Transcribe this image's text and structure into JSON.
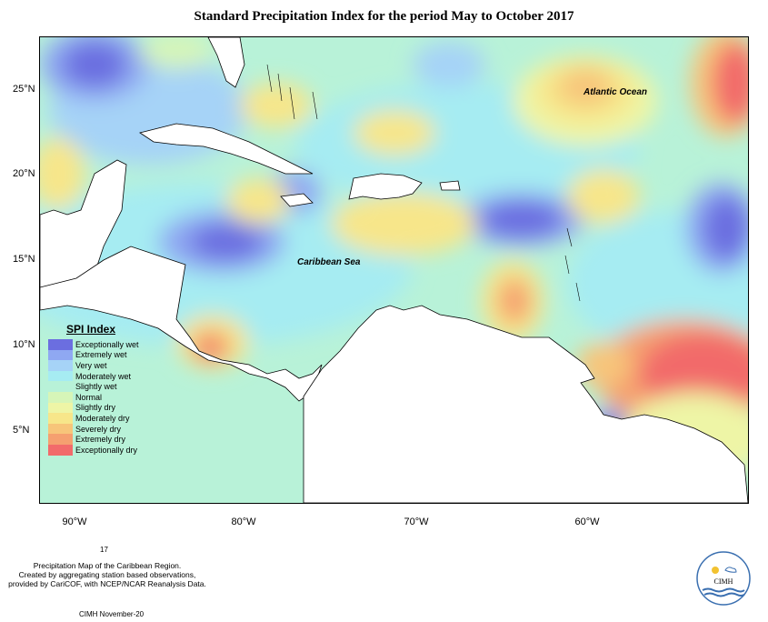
{
  "title": "Standard Precipitation Index for the period May to October 2017",
  "map": {
    "ocean_labels": [
      "Atlantic Ocean",
      "Caribbean Sea"
    ],
    "lat_labels": [
      "25°N",
      "20°N",
      "15°N",
      "10°N",
      "5°N"
    ],
    "lon_labels": [
      "90°W",
      "80°W",
      "70°W",
      "60°W"
    ]
  },
  "legend": {
    "title": "SPI Index",
    "items": [
      {
        "label": "Exceptionally wet",
        "color": "#6b6ee0"
      },
      {
        "label": "Extremely wet",
        "color": "#8fa8f2"
      },
      {
        "label": "Very wet",
        "color": "#a6d3f7"
      },
      {
        "label": "Moderately wet",
        "color": "#a6ecf2"
      },
      {
        "label": "Slightly wet",
        "color": "#b8f2d8"
      },
      {
        "label": "Normal",
        "color": "#d6f5b8"
      },
      {
        "label": "Slightly dry",
        "color": "#eef5a6"
      },
      {
        "label": "Moderately dry",
        "color": "#f7e68a"
      },
      {
        "label": "Severely dry",
        "color": "#f7c57a"
      },
      {
        "label": "Extremely dry",
        "color": "#f5a070"
      },
      {
        "label": "Exceptionally dry",
        "color": "#f26b6b"
      }
    ]
  },
  "credits": {
    "page": "17",
    "lines": [
      "Precipitation Map of the Caribbean Region.",
      "Created by aggregating station based observations,",
      "provided by CariCOF, with NCEP/NCAR Reanalysis Data."
    ],
    "footer": "CIMH November-20"
  },
  "logo": {
    "text": "CIMH"
  }
}
